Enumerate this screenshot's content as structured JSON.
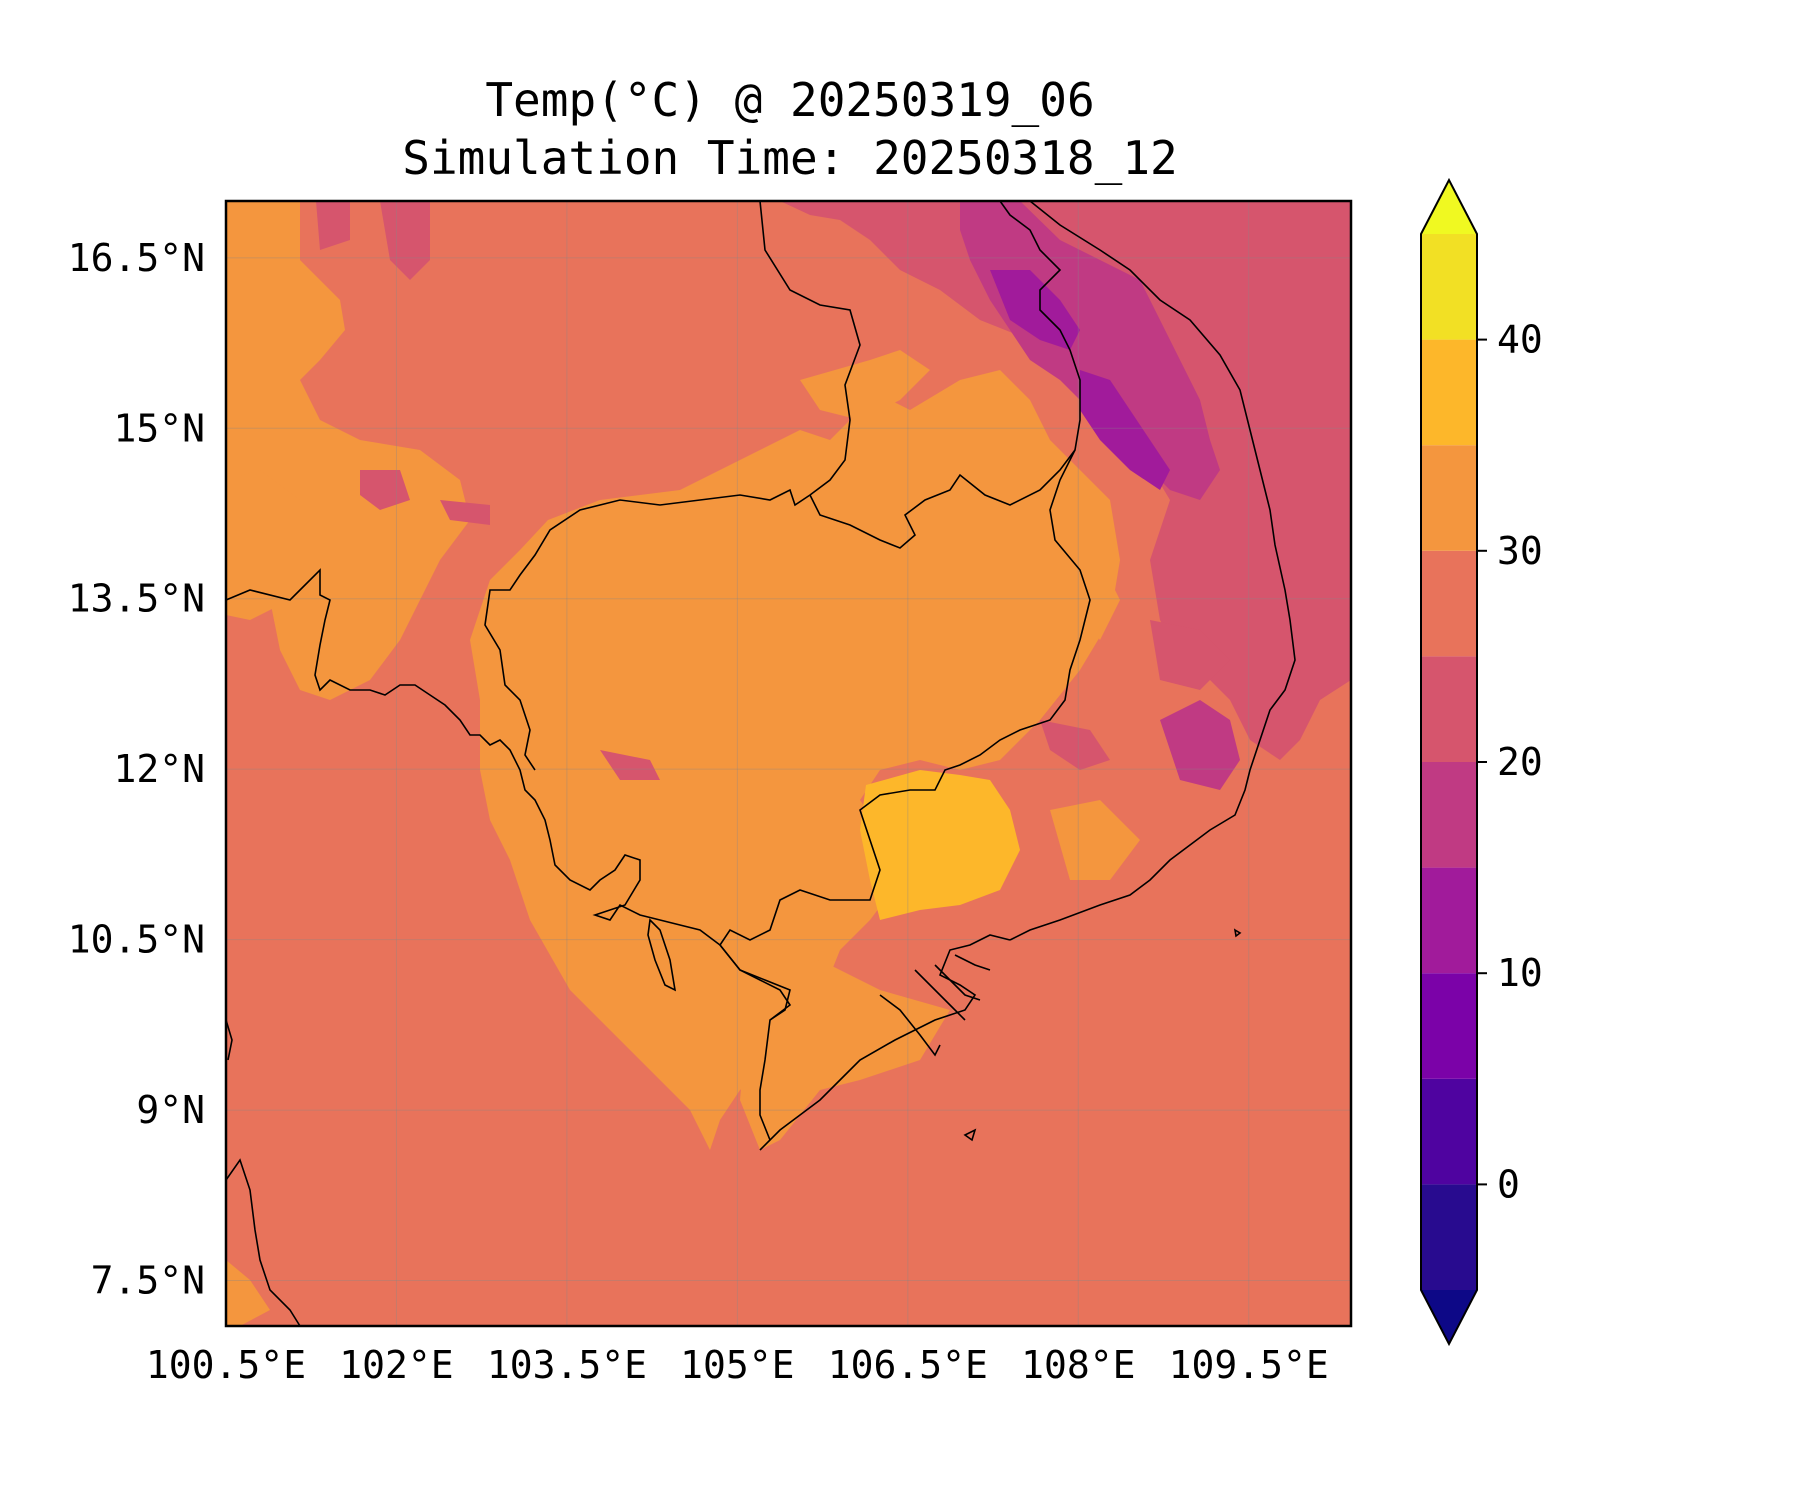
{
  "title": {
    "line1": "Temp(°C) @ 20250319_06",
    "line2": "Simulation Time: 20250318_12"
  },
  "map": {
    "x_ticks": [
      "100.5°E",
      "102°E",
      "103.5°E",
      "105°E",
      "106.5°E",
      "108°E",
      "109.5°E"
    ],
    "y_ticks": [
      "16.5°N",
      "15°N",
      "13.5°N",
      "12°N",
      "10.5°N",
      "9°N",
      "7.5°N"
    ],
    "lon_ticks": [
      100.5,
      102,
      103.5,
      105,
      106.5,
      108,
      109.5
    ],
    "lat_ticks": [
      16.5,
      15,
      13.5,
      12,
      10.5,
      9,
      7.5
    ],
    "lon_range": [
      100.5,
      110.4
    ],
    "lat_range": [
      7.1,
      17.0
    ],
    "background_fill": "#e8735b"
  },
  "colorbar": {
    "tick_labels": [
      "40",
      "30",
      "20",
      "10",
      "0"
    ],
    "tick_values": [
      40,
      30,
      20,
      10,
      0
    ],
    "range": [
      -5,
      45
    ],
    "levels": [
      -5,
      0,
      5,
      10,
      15,
      20,
      25,
      30,
      35,
      40,
      45
    ],
    "band_colors": [
      "#280b8f",
      "#4f03a0",
      "#7b02a8",
      "#a11b9b",
      "#c03a83",
      "#d6556d",
      "#e8735b",
      "#f4963e",
      "#fdb72a",
      "#f2e024"
    ],
    "under_color": "#0d0887",
    "over_color": "#f0f921"
  }
}
